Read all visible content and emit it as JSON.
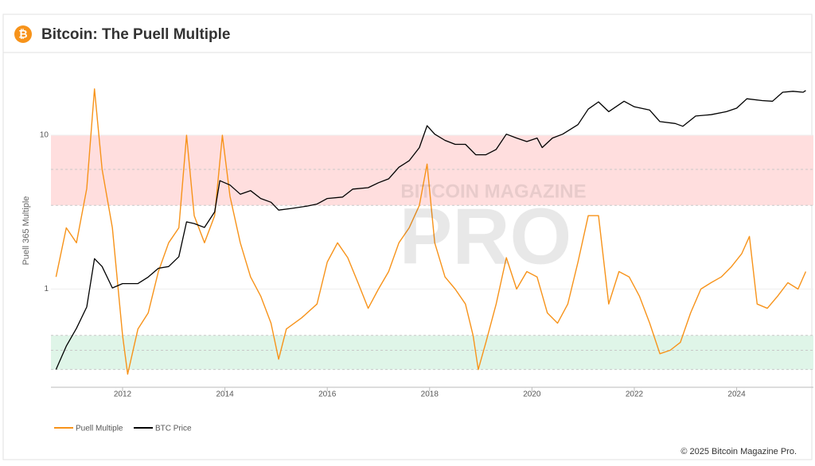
{
  "header": {
    "title": "Bitcoin: The Puell Multiple"
  },
  "chart_data": {
    "type": "line",
    "y_label": "Puell 365 Multiple",
    "watermark": [
      "BITCOIN MAGAZINE",
      "PRO"
    ],
    "xlim": [
      2010.6,
      2025.5
    ],
    "xticks": [
      2012,
      2014,
      2016,
      2018,
      2020,
      2022,
      2024
    ],
    "ylim": [
      0.23,
      31
    ],
    "yticks": [
      1,
      10
    ],
    "yscale": "log",
    "grid": true,
    "y2lim": [
      0.024,
      510000
    ],
    "y2scale": "log",
    "legend": "bottom-left",
    "bands": [
      {
        "range": [
          3.5,
          10
        ],
        "color": "#ffdede",
        "mid": 6
      },
      {
        "range": [
          0.3,
          0.5
        ],
        "color": "#dff5e8",
        "mid": 0.4
      }
    ],
    "series": [
      {
        "name": "Puell Multiple",
        "color": "#f7931a",
        "x": [
          2010.7,
          2010.9,
          2011.1,
          2011.3,
          2011.45,
          2011.6,
          2011.8,
          2012.0,
          2012.1,
          2012.3,
          2012.5,
          2012.7,
          2012.9,
          2013.1,
          2013.25,
          2013.4,
          2013.6,
          2013.8,
          2013.95,
          2014.1,
          2014.3,
          2014.5,
          2014.7,
          2014.9,
          2015.05,
          2015.2,
          2015.5,
          2015.8,
          2016.0,
          2016.2,
          2016.4,
          2016.6,
          2016.8,
          2017.0,
          2017.2,
          2017.4,
          2017.6,
          2017.8,
          2017.95,
          2018.1,
          2018.3,
          2018.5,
          2018.7,
          2018.85,
          2018.95,
          2019.1,
          2019.3,
          2019.5,
          2019.7,
          2019.9,
          2020.1,
          2020.3,
          2020.5,
          2020.7,
          2020.9,
          2021.1,
          2021.3,
          2021.5,
          2021.7,
          2021.9,
          2022.1,
          2022.3,
          2022.5,
          2022.7,
          2022.9,
          2023.1,
          2023.3,
          2023.5,
          2023.7,
          2023.9,
          2024.1,
          2024.25,
          2024.4,
          2024.6,
          2024.8,
          2025.0,
          2025.2,
          2025.35
        ],
        "values": [
          1.2,
          2.5,
          2.0,
          4.5,
          20,
          6,
          2.5,
          0.5,
          0.28,
          0.55,
          0.7,
          1.3,
          2.0,
          2.5,
          10,
          3,
          2.0,
          3,
          10,
          4,
          2.0,
          1.2,
          0.9,
          0.6,
          0.35,
          0.55,
          0.65,
          0.8,
          1.5,
          2.0,
          1.6,
          1.1,
          0.75,
          1.0,
          1.3,
          2.0,
          2.5,
          3.5,
          6.5,
          2.0,
          1.2,
          1.0,
          0.8,
          0.5,
          0.3,
          0.45,
          0.8,
          1.6,
          1.0,
          1.3,
          1.2,
          0.7,
          0.6,
          0.8,
          1.5,
          3.0,
          3.0,
          0.8,
          1.3,
          1.2,
          0.9,
          0.6,
          0.38,
          0.4,
          0.45,
          0.7,
          1.0,
          1.1,
          1.2,
          1.4,
          1.7,
          2.2,
          0.8,
          0.75,
          0.9,
          1.1,
          1.0,
          1.3
        ]
      },
      {
        "name": "BTC Price",
        "color": "#000000",
        "axis": "y2",
        "x": [
          2010.7,
          2010.9,
          2011.1,
          2011.3,
          2011.45,
          2011.6,
          2011.8,
          2012.0,
          2012.3,
          2012.5,
          2012.7,
          2012.9,
          2013.1,
          2013.25,
          2013.4,
          2013.6,
          2013.8,
          2013.9,
          2014.1,
          2014.3,
          2014.5,
          2014.7,
          2014.9,
          2015.05,
          2015.3,
          2015.6,
          2015.8,
          2016.0,
          2016.3,
          2016.5,
          2016.8,
          2017.0,
          2017.2,
          2017.4,
          2017.6,
          2017.8,
          2017.95,
          2018.1,
          2018.3,
          2018.5,
          2018.7,
          2018.9,
          2019.1,
          2019.3,
          2019.5,
          2019.7,
          2019.9,
          2020.1,
          2020.2,
          2020.4,
          2020.6,
          2020.9,
          2021.1,
          2021.3,
          2021.5,
          2021.8,
          2022.0,
          2022.3,
          2022.5,
          2022.8,
          2022.95,
          2023.2,
          2023.5,
          2023.8,
          2024.0,
          2024.2,
          2024.5,
          2024.7,
          2024.9,
          2025.1,
          2025.3,
          2025.35
        ],
        "values": [
          0.06,
          0.2,
          0.5,
          1.5,
          18,
          12,
          4,
          5,
          5,
          7,
          11,
          12,
          20,
          120,
          110,
          90,
          200,
          1000,
          800,
          500,
          600,
          400,
          330,
          220,
          240,
          270,
          300,
          400,
          430,
          650,
          700,
          900,
          1100,
          2000,
          2800,
          5500,
          17000,
          11000,
          8000,
          6500,
          6500,
          3800,
          3800,
          5000,
          11000,
          9000,
          7500,
          9000,
          5500,
          9000,
          11000,
          18000,
          40000,
          58000,
          35000,
          60000,
          45000,
          38000,
          21000,
          19000,
          16500,
          28000,
          30000,
          35000,
          42000,
          68000,
          62000,
          60000,
          95000,
          100000,
          95000,
          104000
        ]
      }
    ],
    "footer": "© 2025 Bitcoin Magazine Pro."
  }
}
